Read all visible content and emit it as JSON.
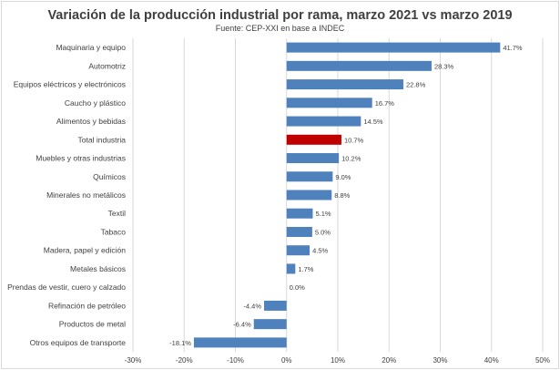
{
  "chart_data": {
    "type": "bar",
    "orientation": "horizontal",
    "title": "Variación de la producción industrial por rama, marzo 2021 vs marzo 2019",
    "subtitle": "Fuente: CEP-XXI en base a INDEC",
    "xlabel": "",
    "ylabel": "",
    "xlim": [
      -30,
      50
    ],
    "xticks": [
      -30,
      -20,
      -10,
      0,
      10,
      20,
      30,
      40,
      50
    ],
    "xtick_labels": [
      "-30%",
      "-20%",
      "-10%",
      "0%",
      "10%",
      "20%",
      "30%",
      "40%",
      "50%"
    ],
    "grid": true,
    "bar_color": "#4f81bd",
    "highlight_color": "#c00000",
    "highlight_category": "Total industria",
    "categories": [
      "Maquinaria y equipo",
      "Automotriz",
      "Equipos eléctricos y electrónicos",
      "Caucho y plástico",
      "Alimentos y bebidas",
      "Total industria",
      "Muebles y otras industrias",
      "Químicos",
      "Minerales no metálicos",
      "Textil",
      "Tabaco",
      "Madera, papel y edición",
      "Metales básicos",
      "Prendas de vestir, cuero y calzado",
      "Refinación de petróleo",
      "Productos de metal",
      "Otros equipos de transporte"
    ],
    "values": [
      41.7,
      28.3,
      22.8,
      16.7,
      14.5,
      10.7,
      10.2,
      9.0,
      8.8,
      5.1,
      5.0,
      4.5,
      1.7,
      0.0,
      -4.4,
      -6.4,
      -18.1
    ],
    "data_labels": [
      "41.7%",
      "28.3%",
      "22.8%",
      "16.7%",
      "14.5%",
      "10.7%",
      "10.2%",
      "9.0%",
      "8.8%",
      "5.1%",
      "5.0%",
      "4.5%",
      "1.7%",
      "0.0%",
      "-4.4%",
      "-6.4%",
      "-18.1%"
    ]
  }
}
